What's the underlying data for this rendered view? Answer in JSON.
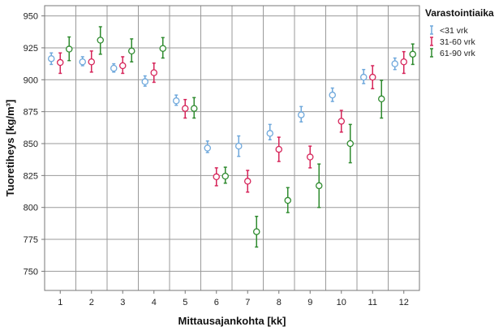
{
  "chart_data": {
    "type": "scatter",
    "xlabel": "Mittausajankohta [kk]",
    "ylabel": "Tuoretiheys [kg/m³]",
    "categories": [
      "1",
      "2",
      "3",
      "4",
      "5",
      "6",
      "7",
      "8",
      "9",
      "10",
      "11",
      "12"
    ],
    "ylim": [
      735,
      958
    ],
    "yticks": [
      750,
      775,
      800,
      825,
      850,
      875,
      900,
      925,
      950
    ],
    "grid": true,
    "legend": {
      "title": "Varastointiaika",
      "position": "right"
    },
    "series": [
      {
        "name": "<31 vrk",
        "color": "#6FA8DC",
        "values": [
          916.5,
          914,
          909,
          898.5,
          883.5,
          846.5,
          848,
          858,
          872.5,
          888,
          902,
          912.5
        ],
        "lower": [
          912,
          911,
          906,
          895,
          880,
          843,
          840,
          853,
          867,
          883,
          897,
          908
        ],
        "upper": [
          921,
          918,
          912.5,
          903,
          888,
          852,
          856,
          865,
          879,
          893.5,
          908,
          917
        ]
      },
      {
        "name": "31-60 vrk",
        "color": "#D6255A",
        "values": [
          913.5,
          914,
          911,
          905.5,
          877.5,
          824,
          820.5,
          845.5,
          839.5,
          867.5,
          902,
          914
        ],
        "lower": [
          905,
          906,
          905,
          898,
          870,
          817,
          812,
          836,
          831,
          859,
          893,
          905
        ],
        "upper": [
          921,
          922.5,
          918,
          913,
          884.5,
          831,
          829,
          855,
          848,
          876,
          911,
          922
        ]
      },
      {
        "name": "61-90 vrk",
        "color": "#2F8B2F",
        "values": [
          924,
          931,
          922.5,
          924.5,
          877.5,
          824.5,
          781,
          805.5,
          817,
          850,
          885,
          920
        ],
        "lower": [
          915,
          920,
          914,
          917,
          870,
          819,
          769,
          796,
          800,
          835,
          870,
          912
        ],
        "upper": [
          933.5,
          941.5,
          932,
          933,
          886,
          831.5,
          793,
          815.5,
          834,
          865,
          899.5,
          928
        ]
      }
    ]
  }
}
